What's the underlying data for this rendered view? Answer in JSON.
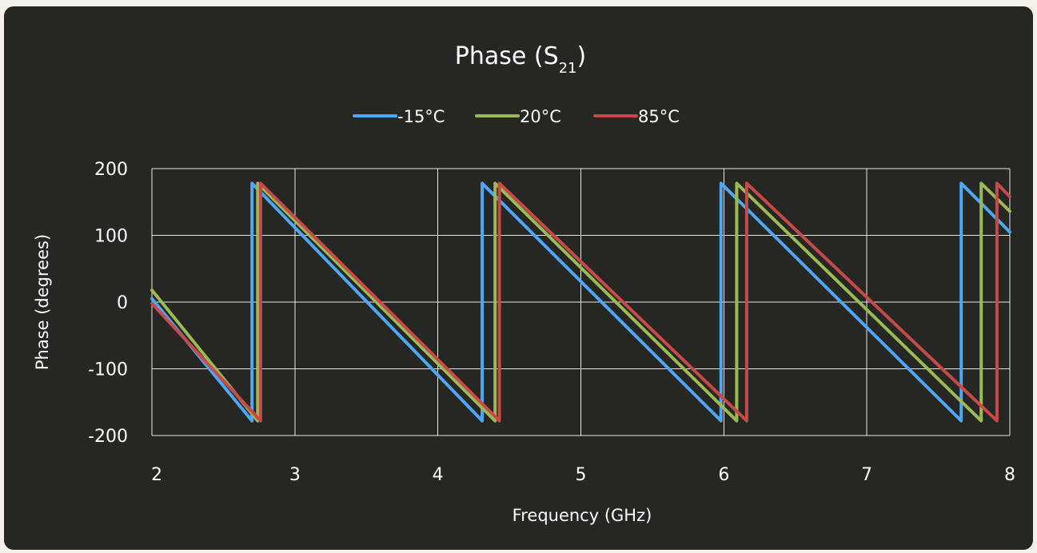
{
  "chart_data": {
    "type": "line",
    "title": "Phase (S",
    "title_subscript": "21",
    "title_suffix": ")",
    "xlabel": "Frequency (GHz)",
    "ylabel": "Phase (degrees)",
    "xlim": [
      2,
      8
    ],
    "ylim": [
      -200,
      200
    ],
    "x_ticks": [
      "2",
      "3",
      "4",
      "5",
      "6",
      "7",
      "8"
    ],
    "y_ticks": [
      "200",
      "100",
      "0",
      "-100",
      "-200"
    ],
    "x_tick_values": [
      2,
      3,
      4,
      5,
      6,
      7,
      8
    ],
    "y_tick_values": [
      200,
      100,
      0,
      -100,
      -200
    ],
    "grid": true,
    "legend_position": "top",
    "series": [
      {
        "name": "-15°C",
        "color": "#4ea6f4",
        "points": [
          [
            2.0,
            5
          ],
          [
            2.7,
            -178
          ],
          [
            2.7,
            178
          ],
          [
            4.31,
            -178
          ],
          [
            4.31,
            178
          ],
          [
            5.98,
            -178
          ],
          [
            5.98,
            178
          ],
          [
            7.66,
            -178
          ],
          [
            7.66,
            178
          ],
          [
            8.0,
            105
          ]
        ]
      },
      {
        "name": "20°C",
        "color": "#9cba54",
        "points": [
          [
            2.0,
            18
          ],
          [
            2.74,
            -178
          ],
          [
            2.74,
            178
          ],
          [
            4.4,
            -178
          ],
          [
            4.4,
            178
          ],
          [
            6.09,
            -178
          ],
          [
            6.09,
            178
          ],
          [
            7.8,
            -178
          ],
          [
            7.8,
            178
          ],
          [
            8.0,
            136
          ]
        ]
      },
      {
        "name": "85°C",
        "color": "#c74a48",
        "points": [
          [
            2.0,
            -2
          ],
          [
            2.76,
            -178
          ],
          [
            2.76,
            178
          ],
          [
            4.43,
            -178
          ],
          [
            4.43,
            178
          ],
          [
            6.16,
            -178
          ],
          [
            6.16,
            178
          ],
          [
            7.91,
            -178
          ],
          [
            7.91,
            178
          ],
          [
            8.0,
            158
          ]
        ]
      }
    ]
  }
}
